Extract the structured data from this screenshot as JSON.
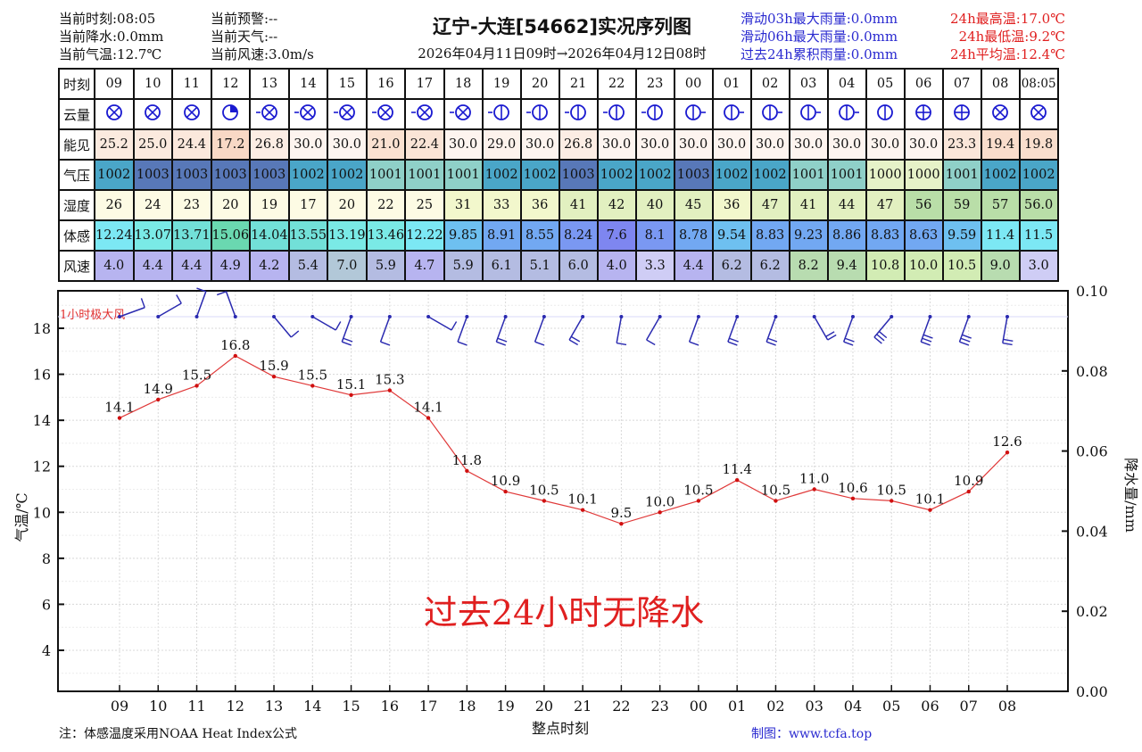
{
  "header": {
    "current_time": "当前时刻:08:05",
    "current_precip": "当前降水:0.0mm",
    "current_temp": "当前气温:12.7℃",
    "current_warning": "当前预警:--",
    "current_weather": "当前天气:--",
    "current_wind": "当前风速:3.0m/s",
    "title": "辽宁-大连[54662]实况序列图",
    "subtitle": "2026年04月11日09时→2026年04月12日08时",
    "rain_3h": "滑动03h最大雨量:0.0mm",
    "rain_6h": "滑动06h最大雨量:0.0mm",
    "rain_24h": "过去24h累积雨量:0.0mm",
    "tmax": "24h最高温:17.0℃",
    "tmin": "24h最低温:9.2℃",
    "tavg": "24h平均温:12.4℃"
  },
  "table": {
    "row_labels": [
      "时刻",
      "云量",
      "能见",
      "气压",
      "湿度",
      "体感",
      "风速"
    ],
    "times": [
      "09",
      "10",
      "11",
      "12",
      "13",
      "14",
      "15",
      "16",
      "17",
      "18",
      "19",
      "20",
      "21",
      "22",
      "23",
      "00",
      "01",
      "02",
      "03",
      "04",
      "05",
      "06",
      "07",
      "08",
      "08:05"
    ],
    "cloud": [
      "overcast",
      "overcast",
      "overcast",
      "quarter",
      "overcast-w",
      "overcast-w",
      "overcast-w",
      "overcast-w",
      "overcast-w",
      "overcast-w",
      "half-w",
      "half-w",
      "half-w",
      "half-w",
      "half-w",
      "half-e",
      "half-e",
      "half-e",
      "half-e",
      "half-e",
      "half",
      "half-cross",
      "half-cross",
      "overcast",
      "overcast"
    ],
    "visibility": [
      "25.2",
      "25.0",
      "24.4",
      "17.2",
      "26.8",
      "30.0",
      "30.0",
      "21.0",
      "22.4",
      "30.0",
      "29.0",
      "30.0",
      "26.8",
      "30.0",
      "30.0",
      "30.0",
      "30.0",
      "30.0",
      "30.0",
      "30.0",
      "30.0",
      "30.0",
      "23.3",
      "19.4",
      "19.8"
    ],
    "pressure": [
      "1002",
      "1003",
      "1003",
      "1003",
      "1003",
      "1002",
      "1002",
      "1001",
      "1001",
      "1001",
      "1002",
      "1002",
      "1003",
      "1002",
      "1002",
      "1003",
      "1002",
      "1002",
      "1001",
      "1001",
      "1000",
      "1000",
      "1001",
      "1002",
      "1002"
    ],
    "humidity": [
      "26",
      "24",
      "23",
      "20",
      "19",
      "17",
      "20",
      "22",
      "25",
      "31",
      "33",
      "36",
      "41",
      "42",
      "40",
      "45",
      "36",
      "47",
      "41",
      "44",
      "47",
      "56",
      "59",
      "57",
      "56.0"
    ],
    "feels_like": [
      "12.24",
      "13.07",
      "13.71",
      "15.06",
      "14.04",
      "13.55",
      "13.19",
      "13.46",
      "12.22",
      "9.85",
      "8.91",
      "8.55",
      "8.24",
      "7.6",
      "8.1",
      "8.78",
      "9.54",
      "8.83",
      "9.23",
      "8.86",
      "8.83",
      "8.63",
      "9.59",
      "11.4",
      "11.5"
    ],
    "wind_speed": [
      "4.0",
      "4.4",
      "4.4",
      "4.9",
      "4.2",
      "5.4",
      "7.0",
      "5.9",
      "4.7",
      "5.9",
      "6.1",
      "5.1",
      "6.0",
      "4.0",
      "3.3",
      "4.4",
      "6.2",
      "6.2",
      "8.2",
      "9.4",
      "10.8",
      "10.0",
      "10.5",
      "9.0",
      "3.0"
    ]
  },
  "colors": {
    "cloud_icon": "#1a1ad0",
    "temp_line": "#e03a3a",
    "wind_barb": "#2a2ab0",
    "no_rain_text": "#e02020",
    "pressure": {
      "1000": "#e6f2c8",
      "1001": "#8fd0c8",
      "1002": "#4aa6c8",
      "1003": "#5878b8"
    },
    "visibility_low": "#fbe0d2",
    "visibility_high": "#fdf3ee"
  },
  "chart_data": {
    "type": "line",
    "title": "辽宁-大连[54662]实况序列图",
    "x": [
      "09",
      "10",
      "11",
      "12",
      "13",
      "14",
      "15",
      "16",
      "17",
      "18",
      "19",
      "20",
      "21",
      "22",
      "23",
      "00",
      "01",
      "02",
      "03",
      "04",
      "05",
      "06",
      "07",
      "08"
    ],
    "series": [
      {
        "name": "气温",
        "values": [
          14.1,
          14.9,
          15.5,
          16.8,
          15.9,
          15.5,
          15.1,
          15.3,
          14.1,
          11.8,
          10.9,
          10.5,
          10.1,
          9.5,
          10.0,
          10.5,
          11.4,
          10.5,
          11.0,
          10.6,
          10.5,
          10.1,
          10.9,
          12.6
        ]
      },
      {
        "name": "1小时极大风",
        "values": [
          4.0,
          4.4,
          4.4,
          4.9,
          4.2,
          5.4,
          7.0,
          5.9,
          4.7,
          5.9,
          6.1,
          5.1,
          6.0,
          4.0,
          3.3,
          4.4,
          6.2,
          6.2,
          8.2,
          9.4,
          10.8,
          10.0,
          10.5,
          9.0
        ]
      }
    ],
    "xlabel": "整点时刻",
    "ylabel": "气温/℃",
    "y2label": "降水量/mm",
    "ylim": [
      2.3,
      19.8
    ],
    "yticks": [
      4,
      6,
      8,
      10,
      12,
      14,
      16,
      18
    ],
    "y2lim": [
      0.0,
      0.1
    ],
    "y2ticks": [
      "0.00",
      "0.02",
      "0.04",
      "0.06",
      "0.08",
      "0.10"
    ],
    "wind_label": "1小时极大风",
    "annotation": "过去24小时无降水",
    "grid": true
  },
  "footer": {
    "note": "注：体感温度采用NOAA Heat Index公式",
    "credit": "制图：www.tcfa.top"
  }
}
